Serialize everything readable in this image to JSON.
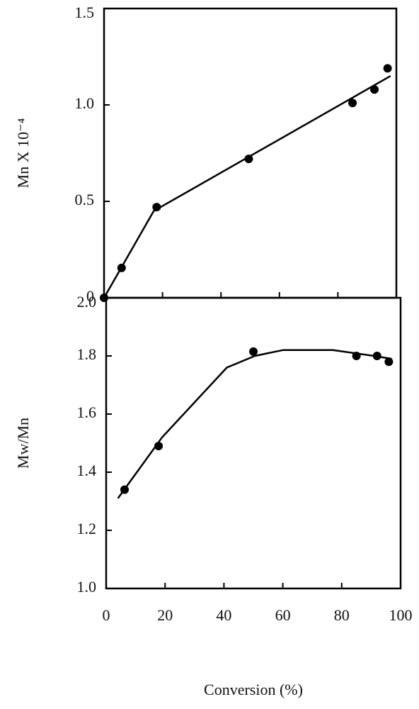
{
  "chart_data": [
    {
      "type": "scatter",
      "y_label": "Mn X 10⁻⁴",
      "xlim": [
        0,
        100
      ],
      "ylim": [
        0,
        1.5
      ],
      "yticks": [
        0,
        0.5,
        {
          "value": 1,
          "label": "1.0"
        },
        1.5
      ],
      "series": [
        {
          "mode": "markers",
          "color": "#000000",
          "x": [
            0,
            6,
            18,
            49.5,
            85,
            92.5,
            97
          ],
          "values": [
            0,
            0.155,
            0.47,
            0.72,
            1.01,
            1.08,
            1.19
          ]
        },
        {
          "mode": "line",
          "color": "#000000",
          "x": [
            0,
            17,
            98
          ],
          "values": [
            0,
            0.45,
            1.15
          ]
        }
      ]
    },
    {
      "type": "scatter",
      "y_label": "Mw/Mn",
      "x_label": "Conversion (%)",
      "xlim": [
        0,
        100
      ],
      "ylim": [
        1,
        2
      ],
      "xticks": [
        0,
        20,
        40,
        60,
        80,
        100
      ],
      "yticks": [
        {
          "value": 1,
          "label": "1.0"
        },
        1.2,
        1.4,
        1.6,
        1.8,
        {
          "value": 2,
          "label": "2.0"
        }
      ],
      "series": [
        {
          "mode": "markers",
          "color": "#000000",
          "x": [
            6.25,
            17.8,
            50,
            85,
            92,
            96
          ],
          "values": [
            1.34,
            1.49,
            1.815,
            1.8,
            1.8,
            1.78
          ]
        },
        {
          "mode": "line",
          "color": "#000000",
          "x": [
            4,
            19,
            41,
            50.5,
            60,
            77,
            91,
            97
          ],
          "values": [
            1.31,
            1.52,
            1.76,
            1.8,
            1.82,
            1.82,
            1.8,
            1.79
          ]
        }
      ]
    }
  ]
}
